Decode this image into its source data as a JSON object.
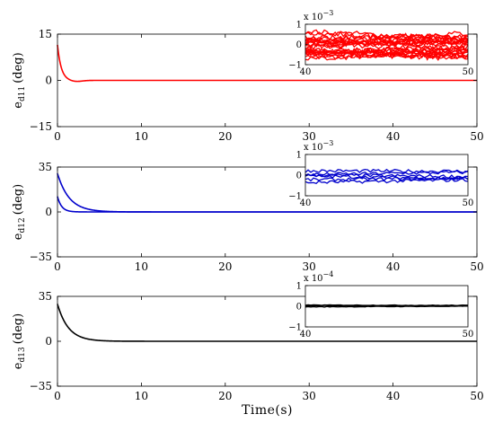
{
  "chart_data": [
    {
      "type": "line",
      "ylabel": "e",
      "ylabel_sub": "d11",
      "ylabel_unit": "(deg)",
      "xlim": [
        0,
        50
      ],
      "ylim": [
        -15,
        15
      ],
      "yticks": [
        "15",
        "0",
        "−15"
      ],
      "ytick_values": [
        15,
        0,
        -15
      ],
      "xticks": [
        "0",
        "10",
        "20",
        "30",
        "40",
        "50"
      ],
      "xtick_values": [
        0,
        10,
        20,
        30,
        40,
        50
      ],
      "color": "#ff0000",
      "series": [
        {
          "initial": 11.5,
          "tau": 0.45,
          "overshoot": -0.4
        }
      ],
      "inset": {
        "xlim": [
          40,
          50
        ],
        "ylim": [
          -1,
          1
        ],
        "xticks": [
          "40",
          "50"
        ],
        "yticks": [
          "1",
          "0",
          "−1"
        ],
        "ytick_values": [
          1,
          0,
          -1
        ],
        "exponent_base": "x 10",
        "exponent": "−3",
        "traces": 24,
        "spread": 0.55,
        "color": "#ff0000"
      }
    },
    {
      "type": "line",
      "ylabel": "e",
      "ylabel_sub": "d12",
      "ylabel_unit": "(deg)",
      "xlim": [
        0,
        50
      ],
      "ylim": [
        -35,
        35
      ],
      "yticks": [
        "35",
        "0",
        "−35"
      ],
      "ytick_values": [
        35,
        0,
        -35
      ],
      "xticks": [
        "0",
        "10",
        "20",
        "30",
        "40",
        "50"
      ],
      "xtick_values": [
        0,
        10,
        20,
        30,
        40,
        50
      ],
      "color": "#0000cc",
      "series": [
        {
          "initial": 30,
          "tau": 1.4,
          "overshoot": 0
        },
        {
          "initial": 12,
          "tau": 0.5,
          "overshoot": 0
        }
      ],
      "inset": {
        "xlim": [
          40,
          50
        ],
        "ylim": [
          -1,
          1
        ],
        "xticks": [
          "40",
          "50"
        ],
        "yticks": [
          "1",
          "0",
          "−1"
        ],
        "ytick_values": [
          1,
          0,
          -1
        ],
        "exponent_base": "x 10",
        "exponent": "−3",
        "traces": 6,
        "spread": 0.32,
        "color": "#0000cc"
      }
    },
    {
      "type": "line",
      "ylabel": "e",
      "ylabel_sub": "d13",
      "ylabel_unit": "(deg)",
      "xlim": [
        0,
        50
      ],
      "ylim": [
        -35,
        35
      ],
      "yticks": [
        "35",
        "0",
        "−35"
      ],
      "ytick_values": [
        35,
        0,
        -35
      ],
      "xticks": [
        "0",
        "10",
        "20",
        "30",
        "40",
        "50"
      ],
      "xtick_values": [
        0,
        10,
        20,
        30,
        40,
        50
      ],
      "xlabel": "Time(s)",
      "color": "#000000",
      "series": [
        {
          "initial": 29,
          "tau": 1.3,
          "overshoot": 0
        }
      ],
      "inset": {
        "xlim": [
          40,
          50
        ],
        "ylim": [
          -1,
          1
        ],
        "xticks": [
          "40",
          "50"
        ],
        "yticks": [
          "1",
          "0",
          "−1"
        ],
        "ytick_values": [
          1,
          0,
          -1
        ],
        "exponent_base": "x 10",
        "exponent": "−4",
        "traces": 3,
        "spread": 0.06,
        "color": "#000000"
      }
    }
  ]
}
